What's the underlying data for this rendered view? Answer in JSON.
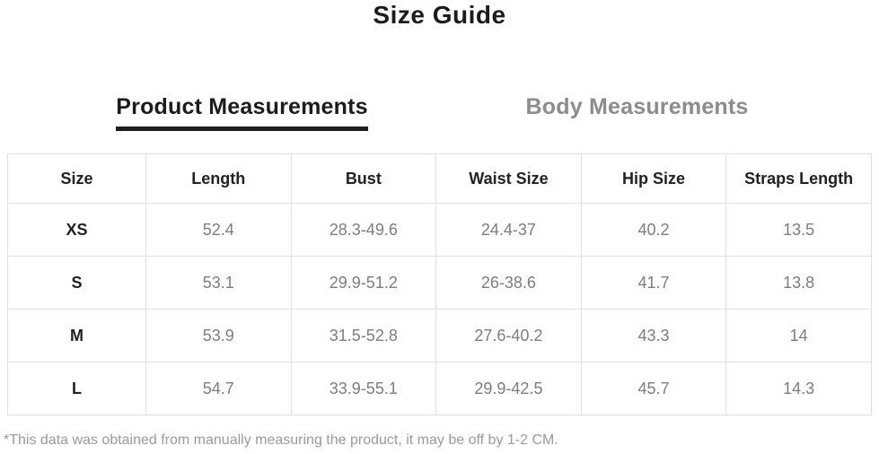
{
  "page": {
    "title": "Size Guide",
    "footnote": "*This data was obtained from manually measuring the product, it may be off by 1-2 CM."
  },
  "tabs": [
    {
      "label": "Product Measurements",
      "active": true
    },
    {
      "label": "Body Measurements",
      "active": false
    }
  ],
  "colors": {
    "text_dark": "#222222",
    "text_gray": "#7d7d7d",
    "tab_inactive": "#8c8c8c",
    "active_underline": "#1e1e1e",
    "table_border": "#e0e0e0",
    "footnote_gray": "#9a9a9a",
    "background": "#ffffff"
  },
  "table": {
    "columns": [
      "Size",
      "Length",
      "Bust",
      "Waist Size",
      "Hip Size",
      "Straps Length"
    ],
    "rows": [
      {
        "cells": [
          "XS",
          "52.4",
          "28.3-49.6",
          "24.4-37",
          "40.2",
          "13.5"
        ]
      },
      {
        "cells": [
          "S",
          "53.1",
          "29.9-51.2",
          "26-38.6",
          "41.7",
          "13.8"
        ]
      },
      {
        "cells": [
          "M",
          "53.9",
          "31.5-52.8",
          "27.6-40.2",
          "43.3",
          "14"
        ]
      },
      {
        "cells": [
          "L",
          "54.7",
          "33.9-55.1",
          "29.9-42.5",
          "45.7",
          "14.3"
        ]
      }
    ]
  }
}
